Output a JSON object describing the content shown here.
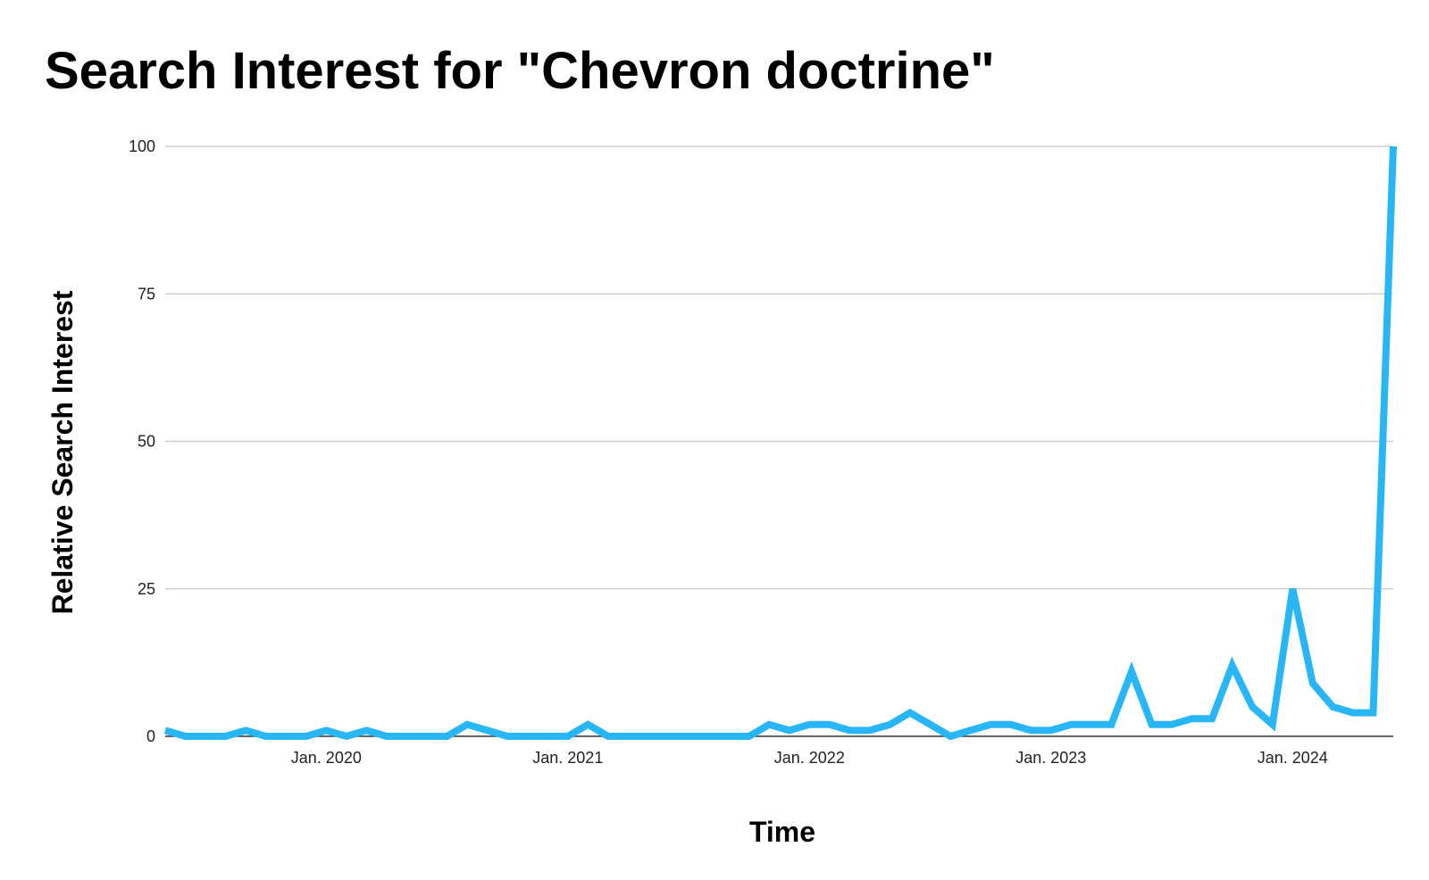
{
  "chart_data": {
    "type": "line",
    "title": "Search Interest for \"Chevron doctrine\"",
    "xlabel": "Time",
    "ylabel": "Relative Search Interest",
    "ylim": [
      0,
      100
    ],
    "yticks": [
      0,
      25,
      50,
      75,
      100
    ],
    "xlim": [
      "2019-05",
      "2024-06"
    ],
    "xticks": [
      {
        "label": "Jan. 2020",
        "date": "2020-01"
      },
      {
        "label": "Jan. 2021",
        "date": "2021-01"
      },
      {
        "label": "Jan. 2022",
        "date": "2022-01"
      },
      {
        "label": "Jan. 2023",
        "date": "2023-01"
      },
      {
        "label": "Jan. 2024",
        "date": "2024-01"
      }
    ],
    "grid": true,
    "line_color": "#29b6f6",
    "series": [
      {
        "x": [
          "2019-05",
          "2019-06",
          "2019-07",
          "2019-08",
          "2019-09",
          "2019-10",
          "2019-11",
          "2019-12",
          "2020-01",
          "2020-02",
          "2020-03",
          "2020-04",
          "2020-05",
          "2020-06",
          "2020-07",
          "2020-08",
          "2020-09",
          "2020-10",
          "2020-11",
          "2020-12",
          "2021-01",
          "2021-02",
          "2021-03",
          "2021-04",
          "2021-05",
          "2021-06",
          "2021-07",
          "2021-08",
          "2021-09",
          "2021-10",
          "2021-11",
          "2021-12",
          "2022-01",
          "2022-02",
          "2022-03",
          "2022-04",
          "2022-05",
          "2022-06",
          "2022-07",
          "2022-08",
          "2022-09",
          "2022-10",
          "2022-11",
          "2022-12",
          "2023-01",
          "2023-02",
          "2023-03",
          "2023-04",
          "2023-05",
          "2023-06",
          "2023-07",
          "2023-08",
          "2023-09",
          "2023-10",
          "2023-11",
          "2023-12",
          "2024-01",
          "2024-02",
          "2024-03",
          "2024-04",
          "2024-05",
          "2024-06"
        ],
        "y": [
          1,
          0,
          0,
          0,
          1,
          0,
          0,
          0,
          1,
          0,
          1,
          0,
          0,
          0,
          0,
          2,
          1,
          0,
          0,
          0,
          0,
          2,
          0,
          0,
          0,
          0,
          0,
          0,
          0,
          0,
          2,
          1,
          2,
          2,
          1,
          1,
          2,
          4,
          2,
          0,
          1,
          2,
          2,
          1,
          1,
          2,
          2,
          2,
          11,
          2,
          2,
          3,
          3,
          12,
          5,
          2,
          25,
          9,
          5,
          4,
          4,
          100
        ]
      }
    ]
  }
}
